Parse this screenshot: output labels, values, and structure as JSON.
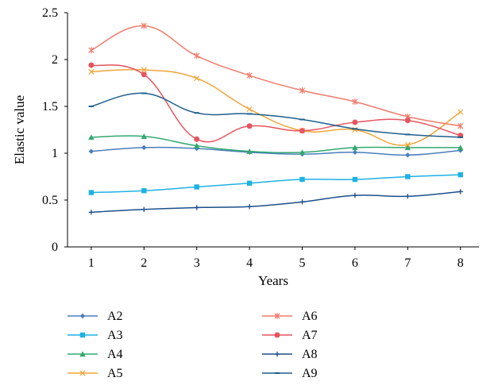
{
  "chart_data": {
    "type": "line",
    "xlabel": "Years",
    "ylabel": "Elastic value",
    "x": [
      1,
      2,
      3,
      4,
      5,
      6,
      7,
      8
    ],
    "x_ticks": [
      "1",
      "2",
      "3",
      "4",
      "5",
      "6",
      "7",
      "8"
    ],
    "ylim": [
      0,
      2.5
    ],
    "y_ticks": [
      "0",
      "0.5",
      "1",
      "1.5",
      "2",
      "2.5"
    ],
    "grid": false,
    "legend_placement": "bottom",
    "series": [
      {
        "name": "A2",
        "color": "#4a7ebb",
        "marker": "diamond",
        "values": [
          1.02,
          1.06,
          1.05,
          1.01,
          0.99,
          1.01,
          0.98,
          1.03
        ]
      },
      {
        "name": "A3",
        "color": "#1fb1e3",
        "marker": "square",
        "values": [
          0.58,
          0.6,
          0.64,
          0.68,
          0.72,
          0.72,
          0.75,
          0.77
        ]
      },
      {
        "name": "A4",
        "color": "#33a870",
        "marker": "triangle",
        "values": [
          1.17,
          1.18,
          1.08,
          1.02,
          1.01,
          1.06,
          1.06,
          1.06
        ]
      },
      {
        "name": "A5",
        "color": "#f0a53a",
        "marker": "x",
        "values": [
          1.87,
          1.89,
          1.8,
          1.47,
          1.24,
          1.25,
          1.09,
          1.44
        ]
      },
      {
        "name": "A6",
        "color": "#ef7c6c",
        "marker": "star",
        "values": [
          2.1,
          2.36,
          2.04,
          1.83,
          1.67,
          1.55,
          1.39,
          1.29
        ]
      },
      {
        "name": "A7",
        "color": "#e5555f",
        "marker": "circle",
        "values": [
          1.94,
          1.84,
          1.15,
          1.29,
          1.24,
          1.33,
          1.35,
          1.19
        ]
      },
      {
        "name": "A8",
        "color": "#1b4f8a",
        "marker": "plus",
        "values": [
          0.37,
          0.4,
          0.42,
          0.43,
          0.48,
          0.55,
          0.54,
          0.59
        ]
      },
      {
        "name": "A9",
        "color": "#1f5f8b",
        "marker": "dash",
        "values": [
          1.5,
          1.64,
          1.43,
          1.42,
          1.36,
          1.26,
          1.2,
          1.17
        ]
      }
    ]
  }
}
